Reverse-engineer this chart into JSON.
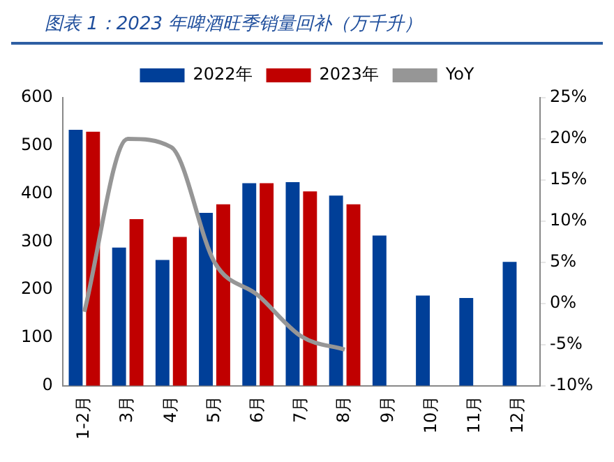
{
  "chart_data": {
    "type": "bar",
    "title": "图表 1：2023 年啤酒旺季销量回补（万千升）",
    "categories": [
      "1-2月",
      "3月",
      "4月",
      "5月",
      "6月",
      "7月",
      "8月",
      "9月",
      "10月",
      "11月",
      "12月"
    ],
    "series": [
      {
        "name": "2022年",
        "color": "#003f98",
        "values": [
          533,
          288,
          262,
          360,
          422,
          424,
          396,
          313,
          188,
          183,
          258
        ]
      },
      {
        "name": "2023年",
        "color": "#c00000",
        "values": [
          529,
          347,
          310,
          378,
          422,
          405,
          378,
          null,
          null,
          null,
          null
        ]
      },
      {
        "name": "YoY",
        "type": "line",
        "axis": "y2",
        "color": "#969696",
        "values": [
          -1,
          20,
          19,
          5,
          1,
          -4,
          -5.6,
          null,
          null,
          null,
          null
        ]
      }
    ],
    "ylim": [
      0,
      600
    ],
    "yticks": [
      0,
      100,
      200,
      300,
      400,
      500,
      600
    ],
    "y2lim": [
      -10,
      25
    ],
    "y2ticks": [
      {
        "value": -10,
        "label": "-10%"
      },
      {
        "value": -5,
        "label": "-5%"
      },
      {
        "value": 0,
        "label": "0%"
      },
      {
        "value": 5,
        "label": "5%"
      },
      {
        "value": 10,
        "label": "10%"
      },
      {
        "value": 15,
        "label": "15%"
      },
      {
        "value": 20,
        "label": "20%"
      },
      {
        "value": 25,
        "label": "25%"
      }
    ],
    "legend": "top",
    "grid": false,
    "marker": "none"
  }
}
